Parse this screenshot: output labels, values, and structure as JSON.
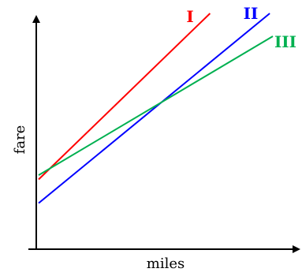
{
  "chart_data": {
    "type": "line",
    "xlabel": "miles",
    "ylabel": "fare",
    "xlim": [
      0,
      1
    ],
    "ylim": [
      0,
      1
    ],
    "grid": false,
    "ticks": false,
    "series": [
      {
        "name": "I",
        "color": "#ff0000",
        "x": [
          0,
          0.732
        ],
        "y": [
          0.181,
          1.0
        ]
      },
      {
        "name": "II",
        "color": "#0000ff",
        "x": [
          0,
          0.987
        ],
        "y": [
          0.064,
          1.0
        ]
      },
      {
        "name": "III",
        "color": "#00b050",
        "x": [
          0,
          1.0
        ],
        "y": [
          0.202,
          0.887
        ]
      }
    ]
  }
}
